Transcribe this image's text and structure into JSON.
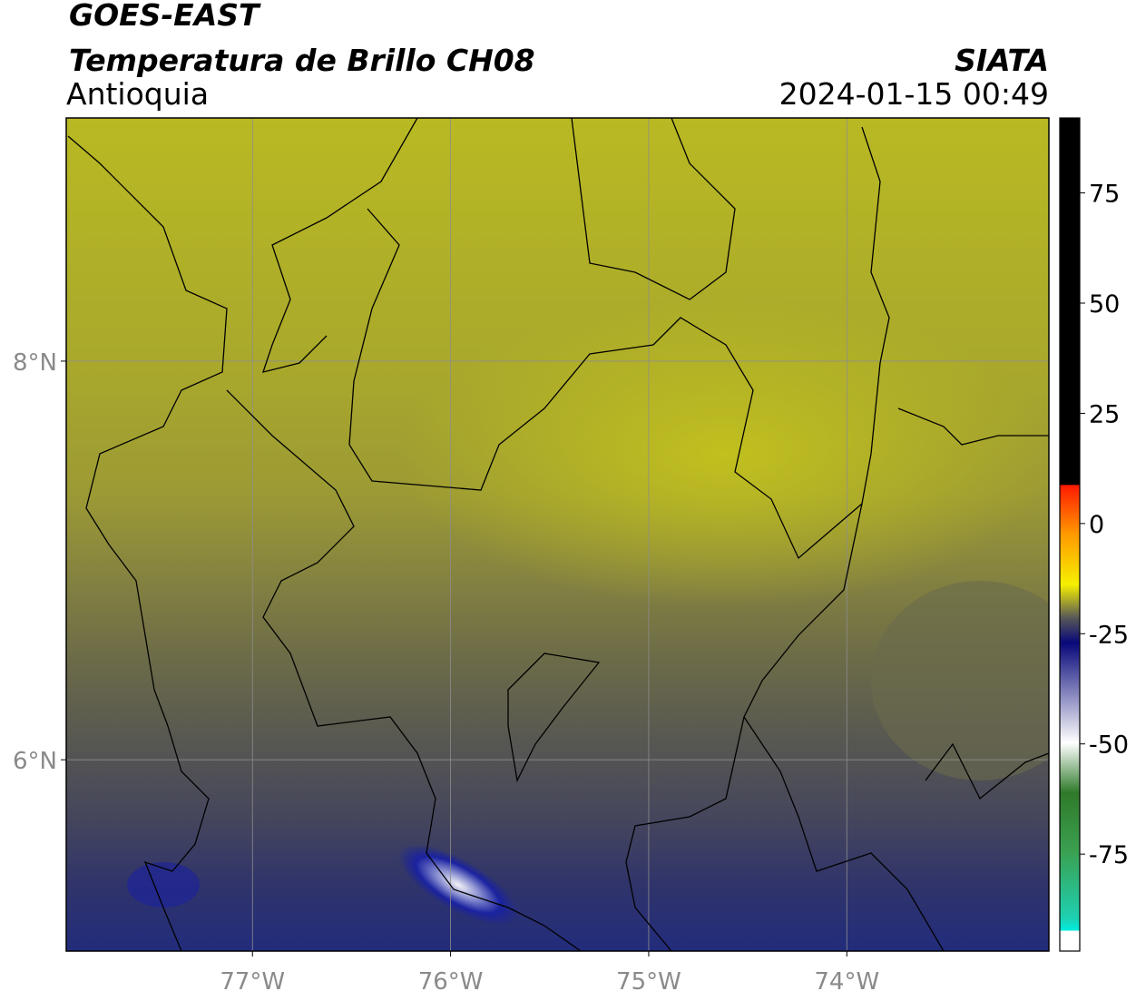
{
  "header": {
    "title": "GOES-EAST",
    "subtitle": "Temperatura de Brillo CH08",
    "agency": "SIATA",
    "region": "Antioquia",
    "datetime": "2024-01-15 00:49"
  },
  "map": {
    "lonlim": [
      -77.94,
      -72.98
    ],
    "latlim": [
      5.04,
      9.22
    ],
    "lonticks": [
      {
        "value": -77,
        "label": "77°W"
      },
      {
        "value": -76,
        "label": "76°W"
      },
      {
        "value": -75,
        "label": "75°W"
      },
      {
        "value": -74,
        "label": "74°W"
      }
    ],
    "latticks": [
      {
        "value": 8,
        "label": "8°N"
      },
      {
        "value": 6,
        "label": "6°N"
      }
    ],
    "grid": true
  },
  "colorbar": {
    "range": [
      -97,
      92
    ],
    "ticks": [
      75,
      50,
      25,
      0,
      -25,
      -50,
      -75
    ]
  }
}
